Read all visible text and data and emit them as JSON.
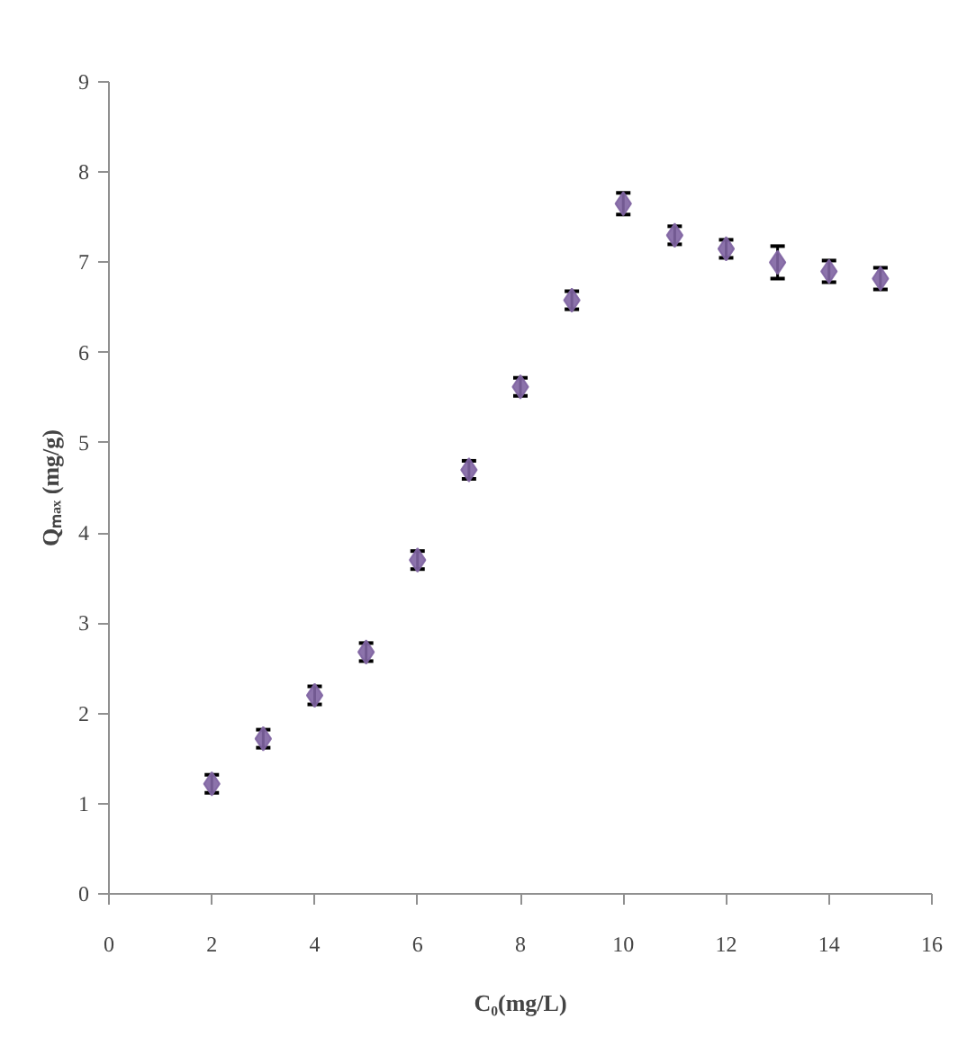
{
  "chart_data": {
    "type": "scatter",
    "xlabel": "C₀(mg/L)",
    "ylabel": "Qₘₐₓ (mg/g)",
    "x": [
      2,
      3,
      4,
      5,
      6,
      7,
      8,
      9,
      10,
      11,
      12,
      13,
      14,
      15
    ],
    "series": [
      {
        "color": "#8064a2",
        "values": [
          1.22,
          1.72,
          2.2,
          2.68,
          3.7,
          4.7,
          5.62,
          6.58,
          7.65,
          7.3,
          7.15,
          7.0,
          6.9,
          6.82
        ],
        "errors": [
          0.1,
          0.1,
          0.1,
          0.1,
          0.1,
          0.1,
          0.1,
          0.1,
          0.12,
          0.1,
          0.1,
          0.18,
          0.12,
          0.12
        ]
      }
    ],
    "marker": "diamond",
    "xlim": [
      0,
      16
    ],
    "xticks": [
      0,
      2,
      4,
      6,
      8,
      10,
      12,
      14,
      16
    ],
    "ylim": [
      0,
      9
    ],
    "yticks": [
      0,
      1,
      2,
      3,
      4,
      5,
      6,
      7,
      8,
      9
    ],
    "grid": false
  }
}
